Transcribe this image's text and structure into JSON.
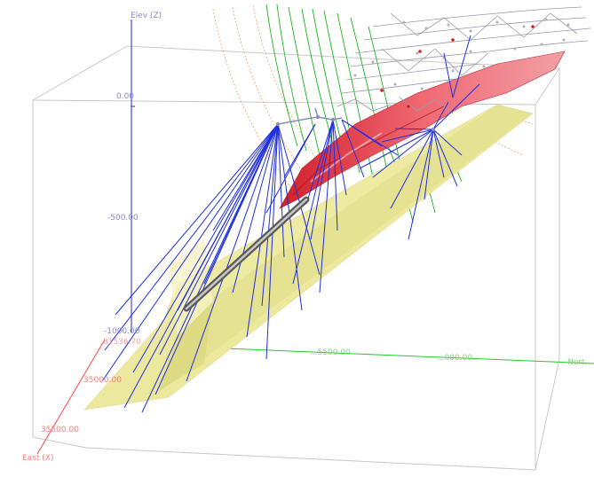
{
  "viewer": {
    "axes": {
      "z_title": "Elev (Z)",
      "x_title": "East (X)",
      "z_ticks": [
        "0.00",
        "-500.00",
        "-1000.00"
      ],
      "x_ticks": [
        "35000.00",
        "35500.00"
      ],
      "y_ticks": [
        "...5500.00",
        "...000.00"
      ],
      "corner_label": "81536.70",
      "right_edge_label": "Nort..."
    },
    "colors": {
      "z_axis": "#2222dd",
      "x_axis": "#ff4444",
      "y_axis": "#22cc22",
      "z_labels": "#8a8ac8",
      "x_labels": "#f08080",
      "y_labels": "#8ad08a",
      "drillholes": "#1f2fe0",
      "orebody": "#e83a44",
      "footwall_surface": "#efec9c",
      "contours_green": "#22b022",
      "contours_orange": "#f0a070",
      "box_frame": "#c8c8c8",
      "topography": "#9090a0"
    }
  }
}
